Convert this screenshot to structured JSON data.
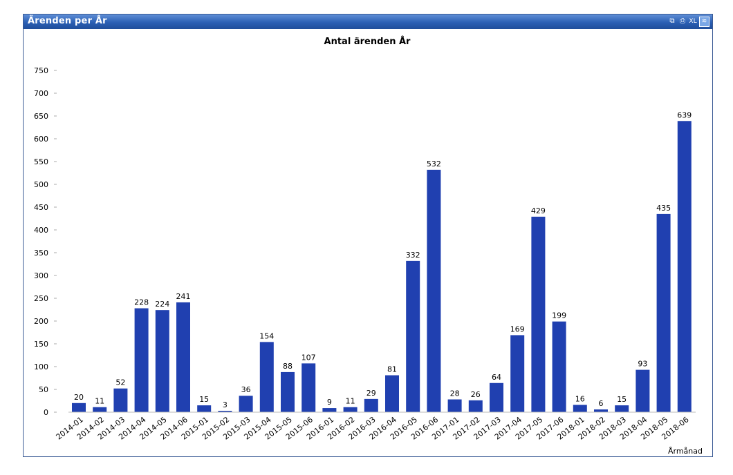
{
  "window": {
    "title": "Ärenden per År",
    "toolbar_icons": [
      {
        "name": "copy-icon",
        "glyph": "⧉"
      },
      {
        "name": "print-icon",
        "glyph": "⎙"
      },
      {
        "name": "excel-icon",
        "glyph": "XL"
      },
      {
        "name": "minimize-icon",
        "glyph": "≋"
      }
    ]
  },
  "chart_data": {
    "type": "bar",
    "title": "Antal ärenden År",
    "xlabel": "Årmånad",
    "ylabel": "",
    "ylim": [
      0,
      750
    ],
    "yticks": [
      0,
      50,
      100,
      150,
      200,
      250,
      300,
      350,
      400,
      450,
      500,
      550,
      600,
      650,
      700,
      750
    ],
    "bar_color": "#2040b0",
    "categories": [
      "2014-01",
      "2014-02",
      "2014-03",
      "2014-04",
      "2014-05",
      "2014-06",
      "2015-01",
      "2015-02",
      "2015-03",
      "2015-04",
      "2015-05",
      "2015-06",
      "2016-01",
      "2016-02",
      "2016-03",
      "2016-04",
      "2016-05",
      "2016-06",
      "2017-01",
      "2017-02",
      "2017-03",
      "2017-04",
      "2017-05",
      "2017-06",
      "2018-01",
      "2018-02",
      "2018-03",
      "2018-04",
      "2018-05",
      "2018-06"
    ],
    "values": [
      20,
      11,
      52,
      228,
      224,
      241,
      15,
      3,
      36,
      154,
      88,
      107,
      9,
      11,
      29,
      81,
      332,
      532,
      28,
      26,
      64,
      169,
      429,
      199,
      16,
      6,
      15,
      93,
      435,
      639
    ]
  }
}
